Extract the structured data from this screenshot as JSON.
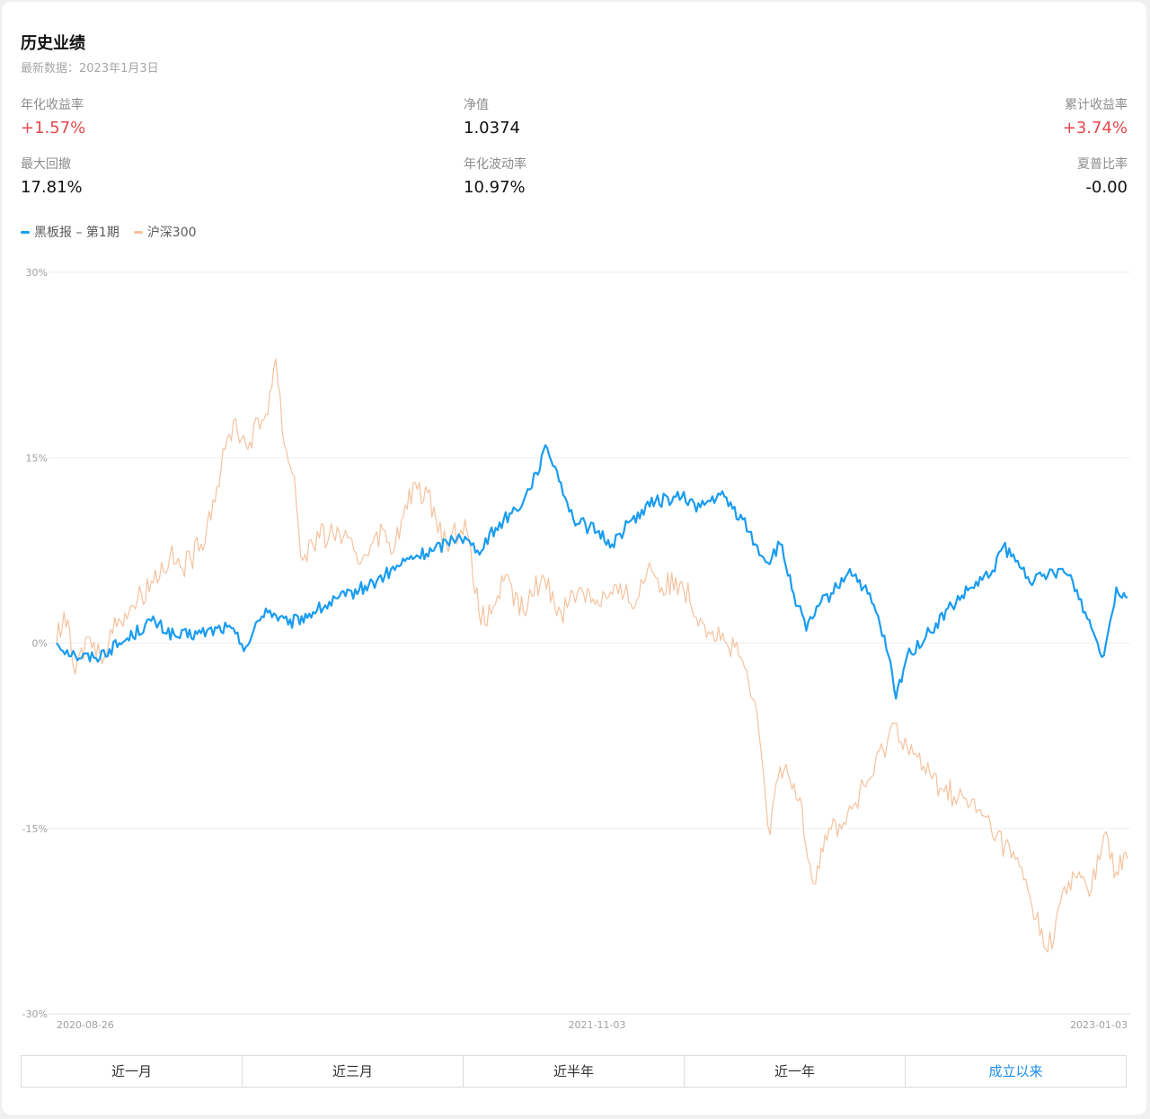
{
  "header": {
    "title": "历史业绩",
    "subtitle": "最新数据：2023年1月3日"
  },
  "stats": [
    {
      "label": "年化收益率",
      "value": "+1.57%",
      "positive": true
    },
    {
      "label": "净值",
      "value": "1.0374",
      "positive": false
    },
    {
      "label": "累计收益率",
      "value": "+3.74%",
      "positive": true
    },
    {
      "label": "最大回撤",
      "value": "17.81%",
      "positive": false
    },
    {
      "label": "年化波动率",
      "value": "10.97%",
      "positive": false
    },
    {
      "label": "夏普比率",
      "value": "-0.00",
      "positive": false
    }
  ],
  "colors": {
    "fund": "#1a9cf0",
    "index": "#f5c29e",
    "positive": "#e5484d",
    "active_tab": "#1a8ce8",
    "grid": "#ececec"
  },
  "chart_data": {
    "type": "line",
    "ylim": [
      -30,
      30
    ],
    "y_ticks": [
      "30%",
      "15%",
      "0%",
      "-15%",
      "-30%"
    ],
    "x_ticks": [
      "2020-08-26",
      "2021-11-03",
      "2023-01-03"
    ],
    "x_range": [
      "2020-08-26",
      "2023-01-03"
    ],
    "series": [
      {
        "name": "黑板报 – 第1期",
        "color": "#1a9cf0",
        "points": [
          [
            "2020-08-26",
            0.0
          ],
          [
            "2020-09-10",
            -1.0
          ],
          [
            "2020-09-25",
            -1.2
          ],
          [
            "2020-10-20",
            0.2
          ],
          [
            "2020-11-10",
            1.8
          ],
          [
            "2020-11-30",
            0.5
          ],
          [
            "2020-12-20",
            0.8
          ],
          [
            "2021-01-10",
            1.3
          ],
          [
            "2021-01-25",
            -0.3
          ],
          [
            "2021-02-10",
            2.8
          ],
          [
            "2021-02-28",
            1.5
          ],
          [
            "2021-03-20",
            2.5
          ],
          [
            "2021-04-15",
            3.8
          ],
          [
            "2021-05-10",
            5.0
          ],
          [
            "2021-06-05",
            6.8
          ],
          [
            "2021-06-25",
            7.5
          ],
          [
            "2021-07-15",
            8.8
          ],
          [
            "2021-07-30",
            7.5
          ],
          [
            "2021-08-20",
            10.0
          ],
          [
            "2021-09-05",
            11.5
          ],
          [
            "2021-09-15",
            13.8
          ],
          [
            "2021-09-24",
            15.8
          ],
          [
            "2021-10-05",
            13.0
          ],
          [
            "2021-10-15",
            10.0
          ],
          [
            "2021-11-03",
            9.0
          ],
          [
            "2021-11-15",
            8.0
          ],
          [
            "2021-12-01",
            10.0
          ],
          [
            "2021-12-20",
            11.5
          ],
          [
            "2022-01-10",
            11.8
          ],
          [
            "2022-01-25",
            11.0
          ],
          [
            "2022-02-10",
            12.0
          ],
          [
            "2022-02-28",
            10.0
          ],
          [
            "2022-03-10",
            8.0
          ],
          [
            "2022-03-20",
            6.5
          ],
          [
            "2022-03-30",
            8.0
          ],
          [
            "2022-04-10",
            4.0
          ],
          [
            "2022-04-20",
            1.0
          ],
          [
            "2022-04-30",
            3.0
          ],
          [
            "2022-05-15",
            4.5
          ],
          [
            "2022-05-25",
            6.0
          ],
          [
            "2022-06-05",
            4.5
          ],
          [
            "2022-06-15",
            2.5
          ],
          [
            "2022-06-25",
            -1.0
          ],
          [
            "2022-07-01",
            -4.5
          ],
          [
            "2022-07-10",
            -1.0
          ],
          [
            "2022-07-25",
            0.5
          ],
          [
            "2022-08-15",
            3.0
          ],
          [
            "2022-08-31",
            4.5
          ],
          [
            "2022-09-15",
            5.5
          ],
          [
            "2022-09-25",
            7.8
          ],
          [
            "2022-10-10",
            6.0
          ],
          [
            "2022-10-20",
            5.0
          ],
          [
            "2022-10-31",
            5.5
          ],
          [
            "2022-11-10",
            6.0
          ],
          [
            "2022-11-20",
            5.0
          ],
          [
            "2022-11-30",
            2.5
          ],
          [
            "2022-12-10",
            0.0
          ],
          [
            "2022-12-15",
            -1.0
          ],
          [
            "2022-12-25",
            4.5
          ],
          [
            "2023-01-03",
            3.7
          ]
        ]
      },
      {
        "name": "沪深300",
        "color": "#f5c29e",
        "points": [
          [
            "2020-08-26",
            0.0
          ],
          [
            "2020-09-01",
            2.5
          ],
          [
            "2020-09-10",
            -2.5
          ],
          [
            "2020-09-20",
            0.5
          ],
          [
            "2020-09-30",
            -1.0
          ],
          [
            "2020-10-15",
            2.0
          ],
          [
            "2020-10-30",
            3.5
          ],
          [
            "2020-11-10",
            5.0
          ],
          [
            "2020-11-25",
            7.0
          ],
          [
            "2020-12-05",
            6.0
          ],
          [
            "2020-12-20",
            8.0
          ],
          [
            "2021-01-05",
            14.0
          ],
          [
            "2021-01-15",
            18.0
          ],
          [
            "2021-01-25",
            16.0
          ],
          [
            "2021-02-10",
            18.5
          ],
          [
            "2021-02-18",
            23.0
          ],
          [
            "2021-02-25",
            16.0
          ],
          [
            "2021-03-05",
            13.5
          ],
          [
            "2021-03-10",
            7.0
          ],
          [
            "2021-03-25",
            8.5
          ],
          [
            "2021-04-10",
            9.0
          ],
          [
            "2021-04-25",
            6.5
          ],
          [
            "2021-05-10",
            9.0
          ],
          [
            "2021-05-25",
            8.0
          ],
          [
            "2021-06-10",
            13.0
          ],
          [
            "2021-06-25",
            11.0
          ],
          [
            "2021-07-05",
            8.0
          ],
          [
            "2021-07-20",
            10.0
          ],
          [
            "2021-07-28",
            4.0
          ],
          [
            "2021-08-05",
            1.5
          ],
          [
            "2021-08-20",
            5.0
          ],
          [
            "2021-09-05",
            2.5
          ],
          [
            "2021-09-20",
            5.5
          ],
          [
            "2021-10-05",
            2.5
          ],
          [
            "2021-10-20",
            4.5
          ],
          [
            "2021-11-03",
            3.5
          ],
          [
            "2021-11-20",
            4.0
          ],
          [
            "2021-12-05",
            3.5
          ],
          [
            "2021-12-15",
            6.5
          ],
          [
            "2021-12-25",
            4.5
          ],
          [
            "2022-01-10",
            5.0
          ],
          [
            "2022-01-25",
            2.0
          ],
          [
            "2022-02-15",
            0.0
          ],
          [
            "2022-02-28",
            -1.5
          ],
          [
            "2022-03-08",
            -4.5
          ],
          [
            "2022-03-15",
            -9.0
          ],
          [
            "2022-03-22",
            -15.5
          ],
          [
            "2022-03-30",
            -10.0
          ],
          [
            "2022-04-15",
            -12.5
          ],
          [
            "2022-04-26",
            -19.5
          ],
          [
            "2022-05-05",
            -15.5
          ],
          [
            "2022-05-20",
            -14.5
          ],
          [
            "2022-06-10",
            -11.0
          ],
          [
            "2022-06-30",
            -6.5
          ],
          [
            "2022-07-15",
            -9.0
          ],
          [
            "2022-07-30",
            -11.0
          ],
          [
            "2022-08-20",
            -12.5
          ],
          [
            "2022-09-05",
            -13.5
          ],
          [
            "2022-09-20",
            -15.5
          ],
          [
            "2022-10-05",
            -17.5
          ],
          [
            "2022-10-15",
            -20.0
          ],
          [
            "2022-10-31",
            -25.0
          ],
          [
            "2022-11-10",
            -21.0
          ],
          [
            "2022-11-25",
            -18.5
          ],
          [
            "2022-12-05",
            -20.0
          ],
          [
            "2022-12-15",
            -15.5
          ],
          [
            "2022-12-25",
            -18.5
          ],
          [
            "2023-01-03",
            -17.5
          ]
        ]
      }
    ]
  },
  "tabs": [
    {
      "label": "近一月",
      "active": false
    },
    {
      "label": "近三月",
      "active": false
    },
    {
      "label": "近半年",
      "active": false
    },
    {
      "label": "近一年",
      "active": false
    },
    {
      "label": "成立以来",
      "active": true
    }
  ]
}
